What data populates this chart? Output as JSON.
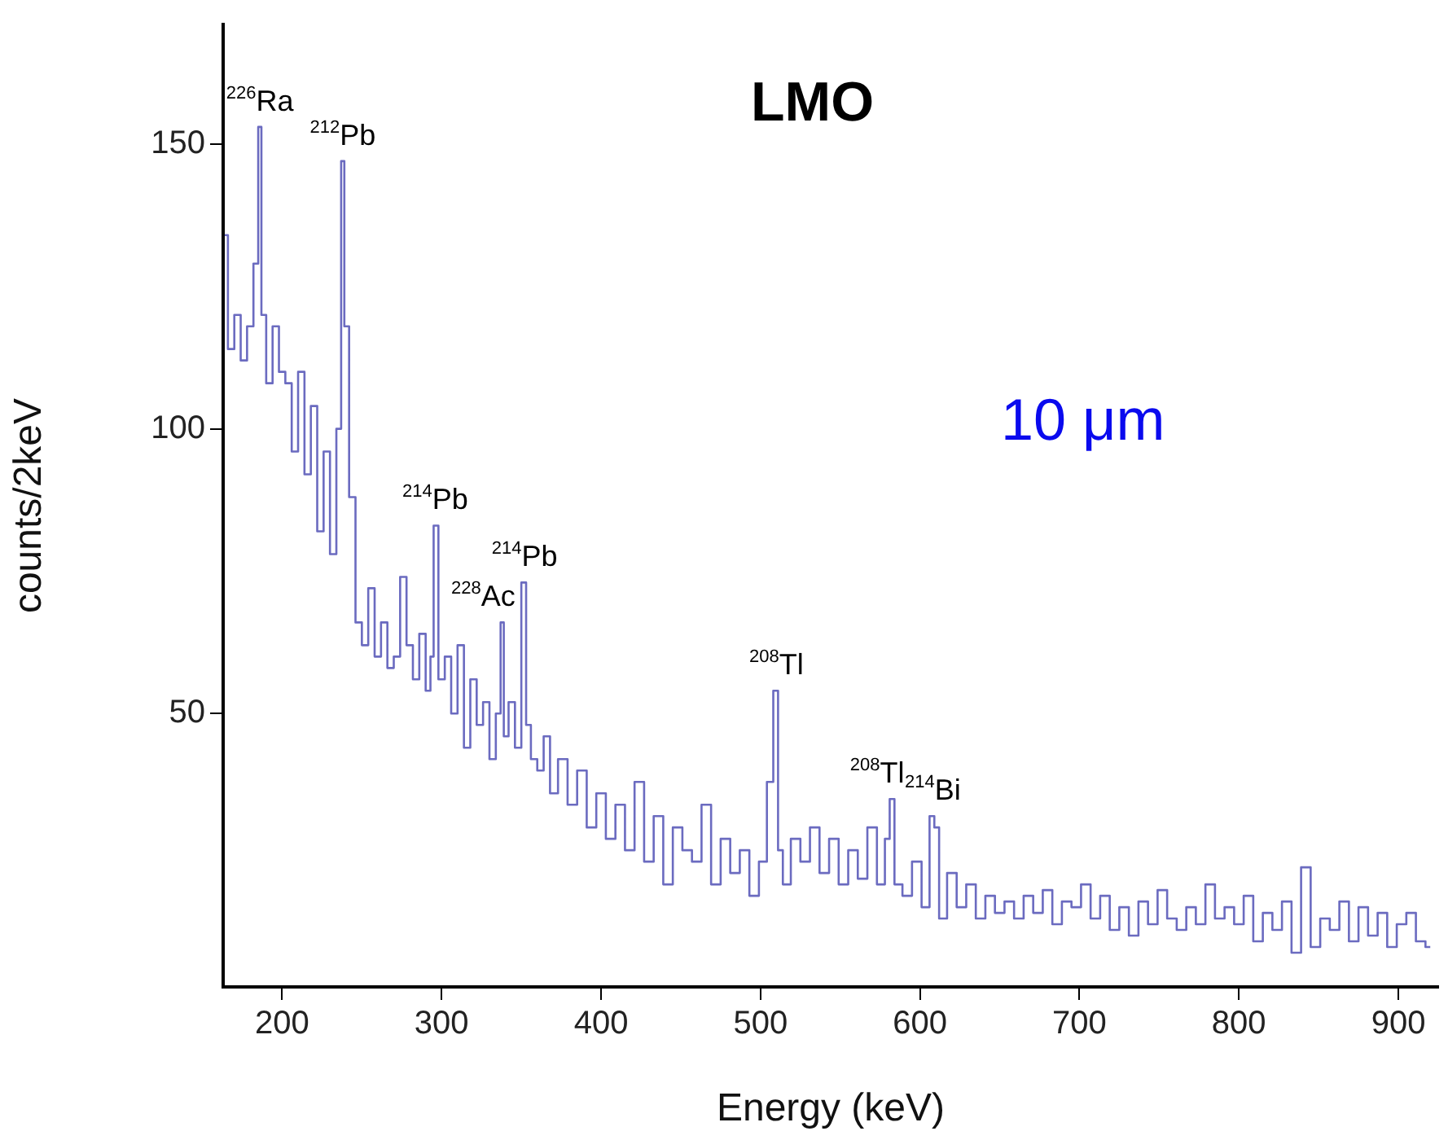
{
  "chart_data": {
    "type": "step",
    "title": "LMO",
    "xlabel": "Energy (keV)",
    "ylabel": "counts/2keV",
    "xlim": [
      163,
      925
    ],
    "ylim": [
      2,
      171
    ],
    "xticks": [
      200,
      300,
      400,
      500,
      600,
      700,
      800,
      900
    ],
    "yticks": [
      50,
      100,
      150
    ],
    "grid": false,
    "series": [
      {
        "color": "#6b6bc0",
        "x": [
          164,
          168,
          172,
          176,
          180,
          184,
          186,
          188,
          192,
          196,
          200,
          204,
          208,
          212,
          216,
          220,
          224,
          228,
          232,
          236,
          238,
          240,
          244,
          248,
          252,
          256,
          260,
          264,
          268,
          272,
          276,
          280,
          284,
          288,
          292,
          294,
          296,
          300,
          304,
          308,
          312,
          316,
          320,
          324,
          328,
          332,
          336,
          338,
          340,
          344,
          348,
          352,
          354,
          358,
          362,
          366,
          370,
          376,
          382,
          388,
          394,
          400,
          406,
          412,
          418,
          424,
          430,
          436,
          442,
          448,
          454,
          460,
          466,
          472,
          478,
          484,
          490,
          496,
          502,
          506,
          510,
          512,
          516,
          522,
          528,
          534,
          540,
          546,
          552,
          558,
          564,
          570,
          576,
          580,
          582,
          586,
          592,
          598,
          604,
          608,
          610,
          614,
          620,
          626,
          632,
          638,
          644,
          650,
          656,
          662,
          668,
          674,
          680,
          686,
          692,
          698,
          704,
          710,
          716,
          722,
          728,
          734,
          740,
          746,
          752,
          758,
          764,
          770,
          776,
          782,
          788,
          794,
          800,
          806,
          812,
          818,
          824,
          830,
          836,
          842,
          848,
          854,
          860,
          866,
          872,
          878,
          884,
          890,
          896,
          902,
          908,
          914,
          920
        ],
        "values": [
          134,
          114,
          120,
          112,
          118,
          129,
          153,
          120,
          108,
          118,
          110,
          108,
          96,
          110,
          92,
          104,
          82,
          96,
          78,
          100,
          147,
          118,
          88,
          66,
          62,
          72,
          60,
          66,
          58,
          60,
          74,
          62,
          56,
          64,
          54,
          60,
          83,
          56,
          60,
          50,
          62,
          44,
          56,
          48,
          52,
          42,
          50,
          66,
          46,
          52,
          44,
          73,
          48,
          42,
          40,
          46,
          36,
          42,
          34,
          40,
          30,
          36,
          28,
          34,
          26,
          38,
          24,
          32,
          20,
          30,
          26,
          24,
          34,
          20,
          28,
          22,
          26,
          18,
          24,
          38,
          54,
          26,
          20,
          28,
          24,
          30,
          22,
          28,
          20,
          26,
          21,
          30,
          20,
          28,
          35,
          20,
          18,
          24,
          16,
          32,
          30,
          14,
          22,
          16,
          20,
          14,
          18,
          15,
          17,
          14,
          18,
          15,
          19,
          13,
          17,
          16,
          20,
          14,
          18,
          12,
          16,
          11,
          17,
          13,
          19,
          14,
          12,
          16,
          13,
          20,
          14,
          16,
          13,
          18,
          10,
          15,
          12,
          17,
          8,
          23,
          9,
          14,
          12,
          17,
          10,
          16,
          11,
          15,
          9,
          13,
          15,
          10,
          9
        ]
      }
    ],
    "annotations": [
      {
        "text": "$^{226}$Ra",
        "x": 186,
        "y": 153
      },
      {
        "text": "$^{212}$Pb",
        "x": 238,
        "y": 147
      },
      {
        "text": "$^{214}$Pb",
        "x": 296,
        "y": 83
      },
      {
        "text": "$^{228}$Ac",
        "x": 338,
        "y": 66
      },
      {
        "text": "$^{214}$Pb",
        "x": 352,
        "y": 73
      },
      {
        "text": "$^{208}$Tl",
        "x": 510,
        "y": 54
      },
      {
        "text": "$^{208}$Tl",
        "x": 582,
        "y": 35
      },
      {
        "text": "$^{214}$Bi",
        "x": 608,
        "y": 32
      },
      "10 μm"
    ]
  }
}
